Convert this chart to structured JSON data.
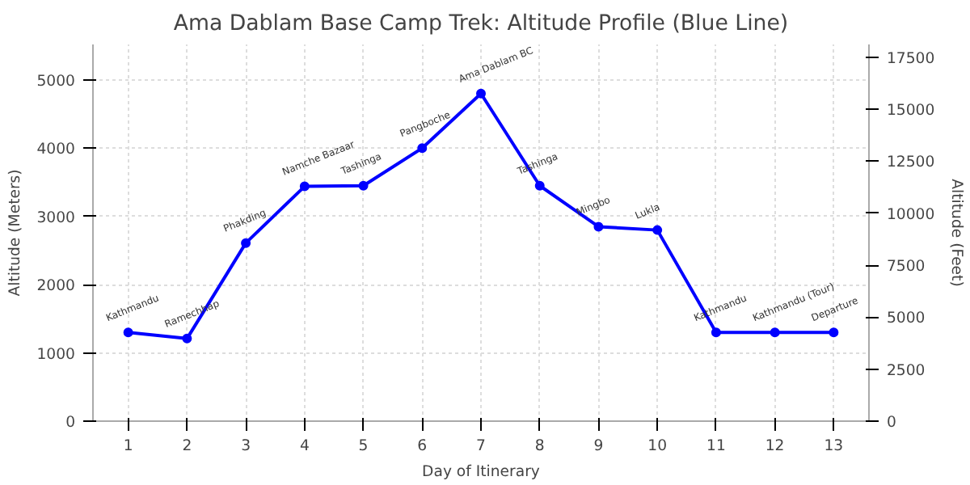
{
  "chart_data": {
    "type": "line",
    "title": "Ama Dablam Base Camp Trek: Altitude Profile (Blue Line)",
    "xlabel": "Day of Itinerary",
    "ylabel": "Altitude (Meters)",
    "y2label": "Altitude (Feet)",
    "x": [
      1,
      2,
      3,
      4,
      5,
      6,
      7,
      8,
      9,
      10,
      11,
      12,
      13
    ],
    "series": [
      {
        "color": "#0000ff",
        "values": [
          1300,
          1210,
          2610,
          3440,
          3450,
          4000,
          4800,
          3450,
          2850,
          2800,
          1300,
          1300,
          1300
        ]
      }
    ],
    "annotations": [
      {
        "text": "Kathmandu",
        "x": 1,
        "y": 1300
      },
      {
        "text": "Ramechhap",
        "x": 2,
        "y": 1210
      },
      {
        "text": "Phakding",
        "x": 3,
        "y": 2610
      },
      {
        "text": "Namche Bazaar",
        "x": 4,
        "y": 3440
      },
      {
        "text": "Tashinga",
        "x": 5,
        "y": 3450
      },
      {
        "text": "Pangboche",
        "x": 6,
        "y": 4000
      },
      {
        "text": "Ama Dablam BC",
        "x": 7,
        "y": 4800
      },
      {
        "text": "Tashinga",
        "x": 8,
        "y": 3450
      },
      {
        "text": "Mingbo",
        "x": 9,
        "y": 2850
      },
      {
        "text": "Lukla",
        "x": 10,
        "y": 2800
      },
      {
        "text": "Kathmandu",
        "x": 11,
        "y": 1300
      },
      {
        "text": "Kathmandu (Tour)",
        "x": 12,
        "y": 1300
      },
      {
        "text": "Departure",
        "x": 13,
        "y": 1300
      }
    ],
    "xlim": [
      0.4,
      13.6
    ],
    "xticks": [
      1,
      2,
      3,
      4,
      5,
      6,
      7,
      8,
      9,
      10,
      11,
      12,
      13
    ],
    "ylim": [
      0,
      5520
    ],
    "yticks": [
      0,
      1000,
      2000,
      3000,
      4000,
      5000
    ],
    "y2lim": [
      0,
      18110
    ],
    "y2ticks": [
      0,
      2500,
      5000,
      7500,
      10000,
      12500,
      15000,
      17500
    ],
    "grid": true,
    "marker": "circle",
    "line_style": "solid"
  }
}
